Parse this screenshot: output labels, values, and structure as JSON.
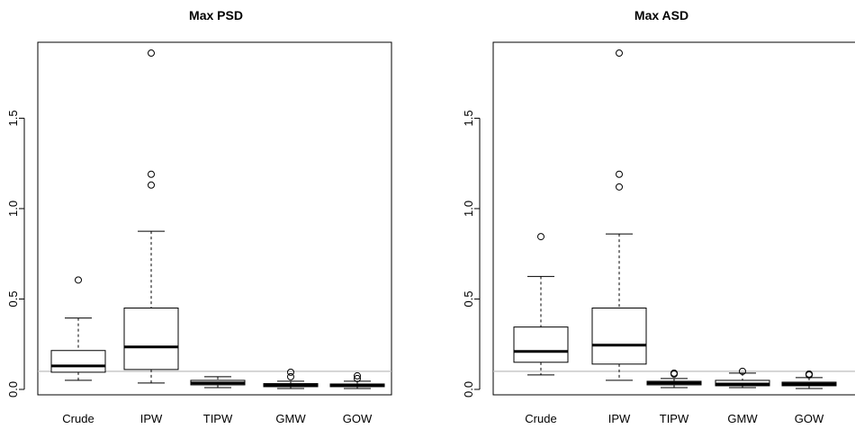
{
  "chart_data": [
    {
      "type": "boxplot",
      "title": "Max PSD",
      "categories": [
        "Crude",
        "IPW",
        "TIPW",
        "GMW",
        "GOW"
      ],
      "yticks": [
        "0.0",
        "0.5",
        "1.0",
        "1.5"
      ],
      "ylim": [
        -0.03,
        1.92
      ],
      "reference_line": 0.1,
      "reference_color": "#bebebe",
      "boxes": [
        {
          "category": "Crude",
          "lower_whisker": 0.05,
          "q1": 0.095,
          "median": 0.13,
          "q3": 0.215,
          "upper_whisker": 0.395,
          "outliers": [
            0.605
          ]
        },
        {
          "category": "IPW",
          "lower_whisker": 0.035,
          "q1": 0.11,
          "median": 0.235,
          "q3": 0.45,
          "upper_whisker": 0.875,
          "outliers": [
            1.13,
            1.19,
            1.86
          ]
        },
        {
          "category": "TIPW",
          "lower_whisker": 0.01,
          "q1": 0.025,
          "median": 0.035,
          "q3": 0.05,
          "upper_whisker": 0.07,
          "outliers": []
        },
        {
          "category": "GMW",
          "lower_whisker": 0.005,
          "q1": 0.015,
          "median": 0.022,
          "q3": 0.032,
          "upper_whisker": 0.045,
          "outliers": [
            0.07,
            0.095
          ]
        },
        {
          "category": "GOW",
          "lower_whisker": 0.005,
          "q1": 0.015,
          "median": 0.022,
          "q3": 0.03,
          "upper_whisker": 0.045,
          "outliers": [
            0.06,
            0.075
          ]
        }
      ]
    },
    {
      "type": "boxplot",
      "title": "Max ASD",
      "categories": [
        "Crude",
        "IPW",
        "TIPW",
        "GMW",
        "GOW"
      ],
      "yticks": [
        "0.0",
        "0.5",
        "1.0",
        "1.5"
      ],
      "ylim": [
        -0.03,
        1.92
      ],
      "reference_line": 0.1,
      "reference_color": "#bebebe",
      "boxes": [
        {
          "category": "Crude",
          "lower_whisker": 0.08,
          "q1": 0.15,
          "median": 0.21,
          "q3": 0.345,
          "upper_whisker": 0.625,
          "outliers": [
            0.845
          ]
        },
        {
          "category": "IPW",
          "lower_whisker": 0.05,
          "q1": 0.14,
          "median": 0.245,
          "q3": 0.45,
          "upper_whisker": 0.86,
          "outliers": [
            1.12,
            1.19,
            1.86
          ]
        },
        {
          "category": "TIPW",
          "lower_whisker": 0.01,
          "q1": 0.025,
          "median": 0.035,
          "q3": 0.045,
          "upper_whisker": 0.06,
          "outliers": [
            0.085,
            0.09
          ]
        },
        {
          "category": "GMW",
          "lower_whisker": 0.01,
          "q1": 0.02,
          "median": 0.03,
          "q3": 0.05,
          "upper_whisker": 0.09,
          "outliers": [
            0.1
          ]
        },
        {
          "category": "GOW",
          "lower_whisker": 0.005,
          "q1": 0.02,
          "median": 0.03,
          "q3": 0.04,
          "upper_whisker": 0.065,
          "outliers": [
            0.08,
            0.085
          ]
        }
      ]
    }
  ]
}
